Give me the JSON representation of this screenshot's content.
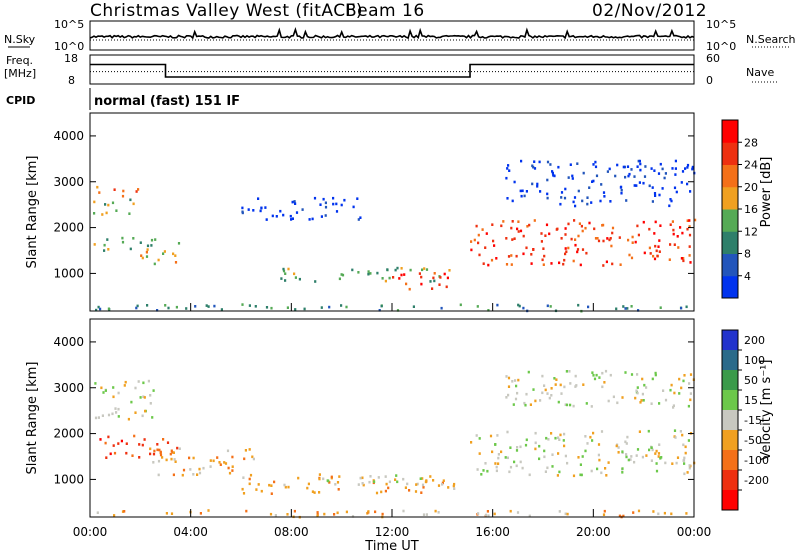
{
  "header": {
    "station": "Christmas Valley West (fitACF)",
    "beam": "Beam 16",
    "date": "02/Nov/2012"
  },
  "noise_panel": {
    "left_label": "N.Sky",
    "right_label": "N.Search",
    "left_ticks": [
      "10^5",
      "10^0"
    ],
    "right_ticks": [
      "10^5",
      "10^0"
    ]
  },
  "freq_panel": {
    "left_label_1": "Freq.",
    "left_label_2": "[MHz]",
    "right_label": "Nave",
    "left_ticks": [
      "18",
      "8"
    ],
    "right_ticks": [
      "60",
      "0"
    ],
    "freq_steps": [
      {
        "t": 0.0,
        "mhz": 15
      },
      {
        "t": 3.0,
        "mhz": 10
      },
      {
        "t": 15.1,
        "mhz": 15
      },
      {
        "t": 24.0,
        "mhz": 15
      }
    ],
    "nave_level": 25
  },
  "cpid": {
    "label": "CPID",
    "text": "normal (fast) 151 IF"
  },
  "time_axis": {
    "xlabel": "Time UT",
    "ticks": [
      "00:00",
      "04:00",
      "08:00",
      "12:00",
      "16:00",
      "20:00",
      "00:00"
    ]
  },
  "power_colorbar": {
    "label": "Power [dB]",
    "ticks": [
      "4",
      "8",
      "12",
      "16",
      "20",
      "24",
      "28"
    ],
    "colors": [
      "#0033ee",
      "#2255bb",
      "#2e7f6a",
      "#55aa55",
      "#f0a020",
      "#f47018",
      "#ee3010",
      "#ff0000"
    ]
  },
  "velocity_colorbar": {
    "label": "Velocity [m s⁻¹]",
    "ticks": [
      "200",
      "100",
      "50",
      "15",
      "-15",
      "-50",
      "-100",
      "-200"
    ],
    "colors": [
      "#2233cc",
      "#2a6a8a",
      "#3a9a4a",
      "#6cc84a",
      "#c8c8c0",
      "#f0a020",
      "#f47018",
      "#ee3010",
      "#ff0000"
    ]
  },
  "chart_data": [
    {
      "type": "heatmap",
      "title": "",
      "ylabel": "Slant Range [km]",
      "xlabel": "",
      "ylim": [
        180,
        4500
      ],
      "xlim": [
        0,
        24
      ],
      "yticks": [
        "4000",
        "3000",
        "2000",
        "1000"
      ],
      "colorbar": "Power [dB]",
      "regions": [
        {
          "t0": 0.2,
          "t1": 1.9,
          "r0": 2700,
          "r1": 2950,
          "level": 5
        },
        {
          "t0": 0.1,
          "t1": 2.0,
          "r0": 2300,
          "r1": 2650,
          "level": 3
        },
        {
          "t0": 0.1,
          "t1": 3.5,
          "r0": 1500,
          "r1": 1800,
          "level": 3
        },
        {
          "t0": 1.5,
          "t1": 3.5,
          "r0": 1200,
          "r1": 1500,
          "level": 4
        },
        {
          "t0": 6.0,
          "t1": 11.0,
          "r0": 2200,
          "r1": 2700,
          "level": 0
        },
        {
          "t0": 7.5,
          "t1": 14.5,
          "r0": 850,
          "r1": 1150,
          "level": 3
        },
        {
          "t0": 12.0,
          "t1": 14.5,
          "r0": 650,
          "r1": 1050,
          "level": 6
        },
        {
          "t0": 15.1,
          "t1": 24.0,
          "r0": 1200,
          "r1": 2200,
          "level": 6
        },
        {
          "t0": 16.5,
          "t1": 24.0,
          "r0": 2500,
          "r1": 3500,
          "level": 0
        },
        {
          "t0": 0.0,
          "t1": 24.0,
          "r0": 200,
          "r1": 350,
          "level": 2
        }
      ]
    },
    {
      "type": "heatmap",
      "title": "",
      "ylabel": "Slant Range [km]",
      "xlabel": "Time UT",
      "ylim": [
        180,
        4500
      ],
      "xlim": [
        0,
        24
      ],
      "yticks": [
        "4000",
        "3000",
        "2000",
        "1000"
      ],
      "colorbar": "Velocity [m s⁻¹]",
      "regions": [
        {
          "t0": 0.1,
          "t1": 2.5,
          "r0": 2300,
          "r1": 3200,
          "level": 4
        },
        {
          "t0": 0.3,
          "t1": 3.5,
          "r0": 1500,
          "r1": 2050,
          "level": 7
        },
        {
          "t0": 2.0,
          "t1": 6.5,
          "r0": 1100,
          "r1": 1700,
          "level": 5
        },
        {
          "t0": 6.0,
          "t1": 14.5,
          "r0": 700,
          "r1": 1100,
          "level": 5
        },
        {
          "t0": 9.0,
          "t1": 14.5,
          "r0": 900,
          "r1": 1150,
          "level": 4
        },
        {
          "t0": 15.1,
          "t1": 24.0,
          "r0": 1100,
          "r1": 2100,
          "level": 4
        },
        {
          "t0": 16.5,
          "t1": 24.0,
          "r0": 2600,
          "r1": 3400,
          "level": 4
        },
        {
          "t0": 0.0,
          "t1": 24.0,
          "r0": 200,
          "r1": 350,
          "level": 5
        }
      ]
    }
  ]
}
